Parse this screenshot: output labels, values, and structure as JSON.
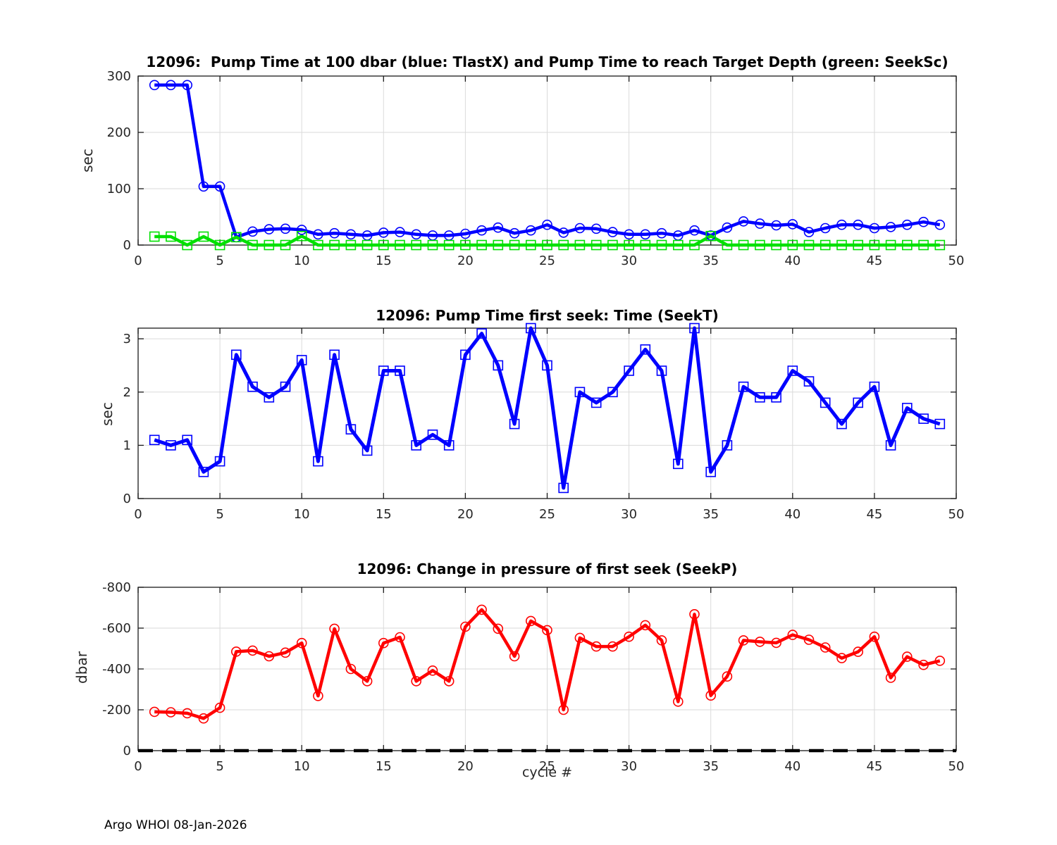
{
  "figure": {
    "footer": "Argo WHOI 08-Jan-2026"
  },
  "chart_data": [
    {
      "type": "line",
      "name": "pump-time-chart",
      "title": "12096:  Pump Time at 100 dbar (blue: TlastX) and Pump Time to reach Target Depth (green: SeekSc)",
      "ylabel": "sec",
      "xlabel": "",
      "xlim": [
        0,
        50
      ],
      "ylim": [
        0,
        300
      ],
      "xticks": [
        0,
        5,
        10,
        15,
        20,
        25,
        30,
        35,
        40,
        45,
        50
      ],
      "yticks": [
        0,
        100,
        200,
        300
      ],
      "grid": true,
      "legend_note": "blue: TlastX, green: SeekSc",
      "x": [
        1,
        2,
        3,
        4,
        5,
        6,
        7,
        8,
        9,
        10,
        11,
        12,
        13,
        14,
        15,
        16,
        17,
        18,
        19,
        20,
        21,
        22,
        23,
        24,
        25,
        26,
        27,
        28,
        29,
        30,
        31,
        32,
        33,
        34,
        35,
        36,
        37,
        38,
        39,
        40,
        41,
        42,
        43,
        44,
        45,
        46,
        47,
        48,
        49
      ],
      "series": [
        {
          "name": "TlastX",
          "color": "#0000ff",
          "marker": "circle",
          "values": [
            284,
            284,
            284,
            104,
            104,
            14,
            24,
            28,
            29,
            27,
            19,
            21,
            19,
            17,
            22,
            23,
            19,
            17,
            17,
            20,
            26,
            31,
            21,
            26,
            36,
            22,
            30,
            29,
            23,
            19,
            19,
            21,
            17,
            26,
            17,
            31,
            42,
            38,
            35,
            37,
            23,
            30,
            36,
            36,
            30,
            32,
            36,
            41,
            36
          ]
        },
        {
          "name": "SeekSc",
          "color": "#00e000",
          "marker": "square",
          "values": [
            15,
            15,
            0,
            15,
            0,
            14,
            0,
            0,
            0,
            16,
            0,
            0,
            0,
            0,
            0,
            0,
            0,
            0,
            0,
            0,
            0,
            0,
            0,
            0,
            0,
            0,
            0,
            0,
            0,
            0,
            0,
            0,
            0,
            0,
            16,
            0,
            0,
            0,
            0,
            0,
            0,
            0,
            0,
            0,
            0,
            0,
            0,
            0,
            0
          ]
        }
      ]
    },
    {
      "type": "line",
      "name": "seek-time-chart",
      "title": "12096: Pump Time first seek: Time (SeekT)",
      "ylabel": "sec",
      "xlabel": "",
      "xlim": [
        0,
        50
      ],
      "ylim": [
        0,
        3.2
      ],
      "xticks": [
        0,
        5,
        10,
        15,
        20,
        25,
        30,
        35,
        40,
        45,
        50
      ],
      "yticks": [
        0,
        1,
        2,
        3
      ],
      "grid": true,
      "x": [
        1,
        2,
        3,
        4,
        5,
        6,
        7,
        8,
        9,
        10,
        11,
        12,
        13,
        14,
        15,
        16,
        17,
        18,
        19,
        20,
        21,
        22,
        23,
        24,
        25,
        26,
        27,
        28,
        29,
        30,
        31,
        32,
        33,
        34,
        35,
        36,
        37,
        38,
        39,
        40,
        41,
        42,
        43,
        44,
        45,
        46,
        47,
        48,
        49
      ],
      "series": [
        {
          "name": "SeekT",
          "color": "#0000ff",
          "marker": "square",
          "values": [
            1.1,
            1.0,
            1.1,
            0.5,
            0.7,
            2.7,
            2.1,
            1.9,
            2.1,
            2.6,
            0.7,
            2.7,
            1.3,
            0.9,
            2.4,
            2.4,
            1.0,
            1.2,
            1.0,
            2.7,
            3.1,
            2.5,
            1.4,
            3.2,
            2.5,
            0.2,
            2.0,
            1.8,
            2.0,
            2.4,
            2.8,
            2.4,
            0.65,
            3.2,
            0.5,
            1.0,
            2.1,
            1.9,
            1.9,
            2.4,
            2.2,
            1.8,
            1.4,
            1.8,
            2.1,
            1.0,
            1.7,
            1.5,
            1.4
          ]
        }
      ]
    },
    {
      "type": "line",
      "name": "seek-pressure-chart",
      "title": "12096: Change in pressure of first seek (SeekP)",
      "ylabel": "dbar",
      "xlabel": "cycle #",
      "xlim": [
        0,
        50
      ],
      "ylim": [
        -800,
        0
      ],
      "y_inverted": true,
      "xticks": [
        0,
        5,
        10,
        15,
        20,
        25,
        30,
        35,
        40,
        45,
        50
      ],
      "yticks": [
        0,
        -200,
        -400,
        -600,
        -800
      ],
      "grid": true,
      "refline": {
        "y": 0,
        "style": "dashed",
        "color": "#000000"
      },
      "x": [
        1,
        2,
        3,
        4,
        5,
        6,
        7,
        8,
        9,
        10,
        11,
        12,
        13,
        14,
        15,
        16,
        17,
        18,
        19,
        20,
        21,
        22,
        23,
        24,
        25,
        26,
        27,
        28,
        29,
        30,
        31,
        32,
        33,
        34,
        35,
        36,
        37,
        38,
        39,
        40,
        41,
        42,
        43,
        44,
        45,
        46,
        47,
        48,
        49
      ],
      "series": [
        {
          "name": "SeekP",
          "color": "#ff0000",
          "marker": "circle",
          "values": [
            -190,
            -188,
            -183,
            -158,
            -210,
            -485,
            -490,
            -462,
            -480,
            -527,
            -268,
            -597,
            -400,
            -340,
            -527,
            -555,
            -340,
            -392,
            -340,
            -607,
            -690,
            -597,
            -462,
            -635,
            -590,
            -200,
            -552,
            -510,
            -510,
            -558,
            -614,
            -540,
            -240,
            -668,
            -270,
            -363,
            -540,
            -533,
            -528,
            -567,
            -543,
            -505,
            -453,
            -484,
            -558,
            -357,
            -460,
            -420,
            -440
          ]
        }
      ]
    }
  ]
}
